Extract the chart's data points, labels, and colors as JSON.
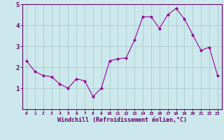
{
  "x": [
    0,
    1,
    2,
    3,
    4,
    5,
    6,
    7,
    8,
    9,
    10,
    11,
    12,
    13,
    14,
    15,
    16,
    17,
    18,
    19,
    20,
    21,
    22,
    23
  ],
  "y": [
    2.3,
    1.8,
    1.6,
    1.55,
    1.2,
    1.0,
    1.45,
    1.35,
    0.6,
    1.0,
    2.3,
    2.4,
    2.45,
    3.3,
    4.4,
    4.4,
    3.85,
    4.5,
    4.8,
    4.3,
    3.55,
    2.8,
    2.95,
    1.6
  ],
  "xlim": [
    -0.5,
    23.5
  ],
  "ylim": [
    0,
    5
  ],
  "yticks": [
    1,
    2,
    3,
    4,
    5
  ],
  "xticks": [
    0,
    1,
    2,
    3,
    4,
    5,
    6,
    7,
    8,
    9,
    10,
    11,
    12,
    13,
    14,
    15,
    16,
    17,
    18,
    19,
    20,
    21,
    22,
    23
  ],
  "xlabel": "Windchill (Refroidissement éolien,°C)",
  "line_color": "#990099",
  "marker": "D",
  "marker_size": 2,
  "bg_color": "#cce8ec",
  "grid_color": "#aacccc",
  "label_color": "#660066",
  "tick_color": "#660066",
  "spine_color": "#660066"
}
